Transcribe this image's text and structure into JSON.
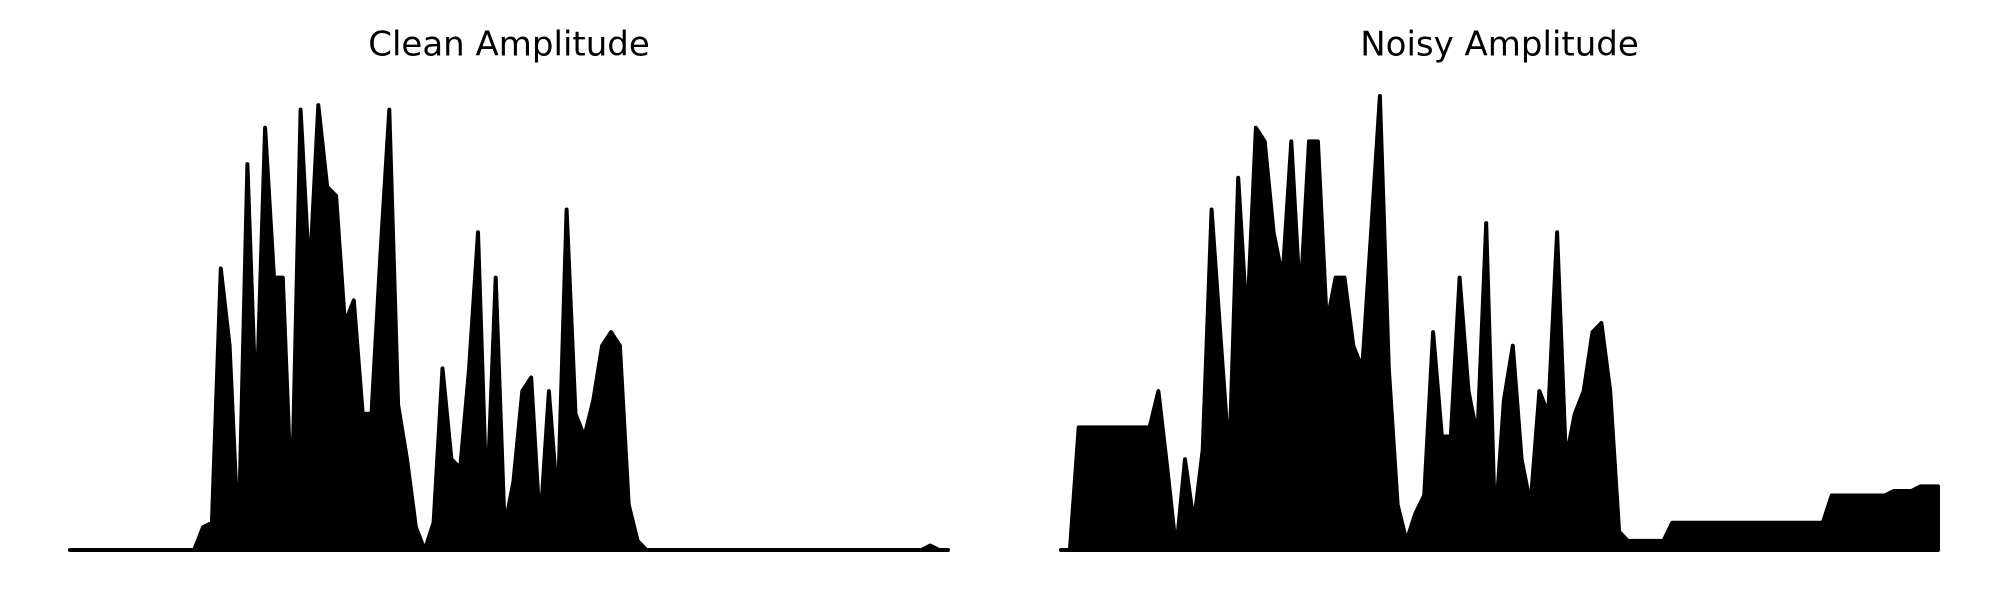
{
  "chart_data": [
    {
      "type": "area",
      "title": "Clean Amplitude",
      "color": "#000000",
      "ylim": [
        0,
        1
      ],
      "values": [
        0,
        0,
        0,
        0,
        0,
        0,
        0,
        0,
        0,
        0,
        0,
        0,
        0,
        0,
        0,
        0.05,
        0.06,
        0.62,
        0.45,
        0.02,
        0.85,
        0.3,
        0.93,
        0.6,
        0.6,
        0.1,
        0.97,
        0.6,
        0.98,
        0.8,
        0.78,
        0.5,
        0.55,
        0.3,
        0.3,
        0.65,
        0.97,
        0.32,
        0.2,
        0.05,
        0,
        0.06,
        0.4,
        0.2,
        0.18,
        0.4,
        0.7,
        0.1,
        0.6,
        0.05,
        0.15,
        0.35,
        0.38,
        0.05,
        0.35,
        0.1,
        0.75,
        0.3,
        0.25,
        0.33,
        0.45,
        0.48,
        0.45,
        0.1,
        0.02,
        0,
        0,
        0,
        0,
        0,
        0,
        0,
        0,
        0,
        0,
        0,
        0,
        0,
        0,
        0,
        0,
        0,
        0,
        0,
        0,
        0,
        0,
        0,
        0,
        0,
        0,
        0,
        0,
        0,
        0,
        0,
        0,
        0.01,
        0,
        0
      ]
    },
    {
      "type": "area",
      "title": "Noisy Amplitude",
      "color": "#000000",
      "ylim": [
        0,
        1
      ],
      "values": [
        0,
        0,
        0.27,
        0.27,
        0.27,
        0.27,
        0.27,
        0.27,
        0.27,
        0.27,
        0.27,
        0.35,
        0.18,
        0,
        0.2,
        0.06,
        0.22,
        0.75,
        0.47,
        0.2,
        0.82,
        0.5,
        0.93,
        0.9,
        0.7,
        0.6,
        0.9,
        0.55,
        0.9,
        0.9,
        0.5,
        0.6,
        0.6,
        0.45,
        0.4,
        0.7,
        1.0,
        0.4,
        0.1,
        0.02,
        0.08,
        0.12,
        0.48,
        0.25,
        0.25,
        0.6,
        0.35,
        0.25,
        0.72,
        0.05,
        0.33,
        0.45,
        0.2,
        0.1,
        0.35,
        0.3,
        0.7,
        0.2,
        0.3,
        0.35,
        0.48,
        0.5,
        0.35,
        0.04,
        0.02,
        0.02,
        0.02,
        0.02,
        0.02,
        0.06,
        0.06,
        0.06,
        0.06,
        0.06,
        0.06,
        0.06,
        0.06,
        0.06,
        0.06,
        0.06,
        0.06,
        0.06,
        0.06,
        0.06,
        0.06,
        0.06,
        0.06,
        0.12,
        0.12,
        0.12,
        0.12,
        0.12,
        0.12,
        0.12,
        0.13,
        0.13,
        0.13,
        0.14,
        0.14,
        0.14
      ]
    }
  ]
}
